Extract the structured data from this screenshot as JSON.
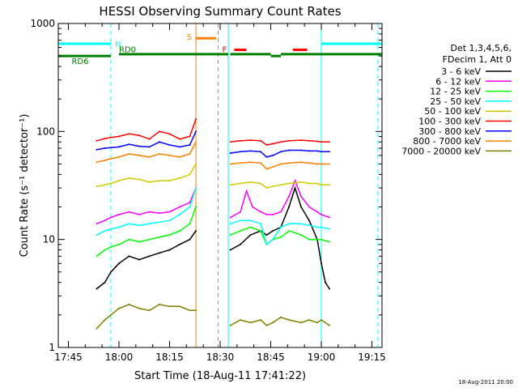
{
  "chart_data": {
    "type": "line",
    "title": "HESSI Observing Summary Count Rates",
    "xlabel": "Start Time (18-Aug-11 17:41:22)",
    "ylabel": "Count Rate (s⁻¹ detector⁻¹)",
    "yscale": "log",
    "xlim": [
      17.7,
      19.3
    ],
    "ylim": [
      1,
      1000
    ],
    "x_unit": "hours (UT)",
    "xticks": [
      {
        "v": 17.75,
        "label": "17:45"
      },
      {
        "v": 18.0,
        "label": "18:00"
      },
      {
        "v": 18.25,
        "label": "18:15"
      },
      {
        "v": 18.5,
        "label": "18:30"
      },
      {
        "v": 18.75,
        "label": "18:45"
      },
      {
        "v": 19.0,
        "label": "19:00"
      },
      {
        "v": 19.25,
        "label": "19:15"
      }
    ],
    "yticks": [
      {
        "v": 1,
        "label": "1"
      },
      {
        "v": 10,
        "label": "10"
      },
      {
        "v": 100,
        "label": "100"
      },
      {
        "v": 1000,
        "label": "1000"
      }
    ],
    "legend": {
      "placement": "right",
      "header": [
        "Det 1,3,4,5,6,",
        "FDecim 1, Att 0"
      ]
    },
    "footer_date": "18-Aug-2011 20:00",
    "series": [
      {
        "name": "3 - 6 keV",
        "color": "#000000",
        "segments": [
          [
            [
              17.89,
              3.5
            ],
            [
              17.93,
              4
            ],
            [
              17.96,
              5
            ],
            [
              18.0,
              6
            ],
            [
              18.05,
              7
            ],
            [
              18.1,
              6.5
            ],
            [
              18.15,
              7
            ],
            [
              18.2,
              7.5
            ],
            [
              18.25,
              8
            ],
            [
              18.3,
              9
            ],
            [
              18.35,
              10
            ],
            [
              18.38,
              12
            ]
          ],
          [
            [
              18.55,
              8
            ],
            [
              18.6,
              9
            ],
            [
              18.65,
              11
            ],
            [
              18.7,
              12
            ],
            [
              18.73,
              11
            ],
            [
              18.76,
              12
            ],
            [
              18.8,
              13
            ],
            [
              18.84,
              20
            ],
            [
              18.87,
              30
            ],
            [
              18.9,
              20
            ],
            [
              18.94,
              15
            ],
            [
              18.98,
              10
            ],
            [
              19.0,
              6
            ],
            [
              19.02,
              4
            ],
            [
              19.04,
              3.5
            ]
          ]
        ]
      },
      {
        "name": "6 - 12 keV",
        "color": "#ff00ff",
        "segments": [
          [
            [
              17.89,
              14
            ],
            [
              17.93,
              15
            ],
            [
              17.96,
              16
            ],
            [
              18.0,
              17
            ],
            [
              18.05,
              18
            ],
            [
              18.1,
              17
            ],
            [
              18.15,
              18
            ],
            [
              18.2,
              17.5
            ],
            [
              18.25,
              18
            ],
            [
              18.3,
              20
            ],
            [
              18.35,
              22
            ],
            [
              18.38,
              30
            ]
          ],
          [
            [
              18.55,
              16
            ],
            [
              18.6,
              18
            ],
            [
              18.63,
              28
            ],
            [
              18.66,
              20
            ],
            [
              18.7,
              18
            ],
            [
              18.73,
              17
            ],
            [
              18.76,
              17
            ],
            [
              18.8,
              18
            ],
            [
              18.84,
              25
            ],
            [
              18.87,
              35
            ],
            [
              18.9,
              25
            ],
            [
              18.94,
              20
            ],
            [
              18.98,
              18
            ],
            [
              19.0,
              17
            ],
            [
              19.04,
              16
            ]
          ]
        ]
      },
      {
        "name": "12 - 25 keV",
        "color": "#00ff00",
        "segments": [
          [
            [
              17.89,
              7
            ],
            [
              17.93,
              8
            ],
            [
              17.96,
              8.5
            ],
            [
              18.0,
              9
            ],
            [
              18.05,
              10
            ],
            [
              18.1,
              9.5
            ],
            [
              18.15,
              10
            ],
            [
              18.2,
              10.5
            ],
            [
              18.25,
              11
            ],
            [
              18.3,
              12
            ],
            [
              18.35,
              14
            ],
            [
              18.38,
              20
            ]
          ],
          [
            [
              18.55,
              11
            ],
            [
              18.6,
              12
            ],
            [
              18.65,
              13
            ],
            [
              18.7,
              12
            ],
            [
              18.73,
              9
            ],
            [
              18.76,
              10
            ],
            [
              18.8,
              10.5
            ],
            [
              18.84,
              12
            ],
            [
              18.9,
              11
            ],
            [
              18.94,
              10
            ],
            [
              18.98,
              10
            ],
            [
              19.0,
              10
            ],
            [
              19.04,
              9.5
            ]
          ]
        ]
      },
      {
        "name": "25 - 50 keV",
        "color": "#00ffff",
        "segments": [
          [
            [
              17.89,
              11
            ],
            [
              17.93,
              12
            ],
            [
              17.96,
              12.5
            ],
            [
              18.0,
              13
            ],
            [
              18.05,
              14
            ],
            [
              18.1,
              13.5
            ],
            [
              18.15,
              14
            ],
            [
              18.2,
              14.5
            ],
            [
              18.25,
              15
            ],
            [
              18.3,
              17
            ],
            [
              18.35,
              20
            ],
            [
              18.38,
              30
            ]
          ],
          [
            [
              18.55,
              14
            ],
            [
              18.6,
              15
            ],
            [
              18.65,
              15
            ],
            [
              18.7,
              14
            ],
            [
              18.73,
              9
            ],
            [
              18.76,
              10
            ],
            [
              18.8,
              13
            ],
            [
              18.84,
              14
            ],
            [
              18.9,
              14
            ],
            [
              18.94,
              13.5
            ],
            [
              18.98,
              13
            ],
            [
              19.0,
              13
            ],
            [
              19.04,
              12.5
            ]
          ]
        ]
      },
      {
        "name": "50 - 100 keV",
        "color": "#cccc00",
        "segments": [
          [
            [
              17.89,
              31
            ],
            [
              17.93,
              32
            ],
            [
              17.96,
              33
            ],
            [
              18.0,
              35
            ],
            [
              18.05,
              37
            ],
            [
              18.1,
              36
            ],
            [
              18.15,
              34
            ],
            [
              18.2,
              35
            ],
            [
              18.25,
              35
            ],
            [
              18.3,
              37
            ],
            [
              18.35,
              40
            ],
            [
              18.38,
              50
            ]
          ],
          [
            [
              18.55,
              32
            ],
            [
              18.6,
              33
            ],
            [
              18.65,
              34
            ],
            [
              18.7,
              33
            ],
            [
              18.73,
              30
            ],
            [
              18.76,
              31
            ],
            [
              18.8,
              32
            ],
            [
              18.84,
              33
            ],
            [
              18.9,
              34
            ],
            [
              18.94,
              33
            ],
            [
              18.98,
              33
            ],
            [
              19.0,
              32
            ],
            [
              19.04,
              32
            ]
          ]
        ]
      },
      {
        "name": "100 - 300 keV",
        "color": "#ff0000",
        "segments": [
          [
            [
              17.89,
              82
            ],
            [
              17.93,
              86
            ],
            [
              17.96,
              88
            ],
            [
              18.0,
              90
            ],
            [
              18.05,
              95
            ],
            [
              18.1,
              92
            ],
            [
              18.15,
              85
            ],
            [
              18.2,
              100
            ],
            [
              18.25,
              95
            ],
            [
              18.3,
              85
            ],
            [
              18.35,
              90
            ],
            [
              18.38,
              130
            ]
          ],
          [
            [
              18.55,
              80
            ],
            [
              18.6,
              82
            ],
            [
              18.65,
              83
            ],
            [
              18.7,
              82
            ],
            [
              18.73,
              75
            ],
            [
              18.76,
              77
            ],
            [
              18.8,
              80
            ],
            [
              18.84,
              82
            ],
            [
              18.9,
              83
            ],
            [
              18.94,
              82
            ],
            [
              18.98,
              81
            ],
            [
              19.0,
              80
            ],
            [
              19.04,
              80
            ]
          ]
        ]
      },
      {
        "name": "300 - 800 keV",
        "color": "#0000ff",
        "segments": [
          [
            [
              17.89,
              68
            ],
            [
              17.93,
              70
            ],
            [
              17.96,
              71
            ],
            [
              18.0,
              72
            ],
            [
              18.05,
              76
            ],
            [
              18.1,
              73
            ],
            [
              18.15,
              72
            ],
            [
              18.2,
              80
            ],
            [
              18.25,
              75
            ],
            [
              18.3,
              72
            ],
            [
              18.35,
              75
            ],
            [
              18.38,
              100
            ]
          ],
          [
            [
              18.55,
              63
            ],
            [
              18.6,
              65
            ],
            [
              18.65,
              66
            ],
            [
              18.7,
              65
            ],
            [
              18.73,
              58
            ],
            [
              18.76,
              60
            ],
            [
              18.8,
              65
            ],
            [
              18.84,
              67
            ],
            [
              18.9,
              67
            ],
            [
              18.94,
              66
            ],
            [
              18.98,
              66
            ],
            [
              19.0,
              65
            ],
            [
              19.04,
              65
            ]
          ]
        ]
      },
      {
        "name": "800 - 7000 keV",
        "color": "#ff8000",
        "segments": [
          [
            [
              17.89,
              52
            ],
            [
              17.93,
              54
            ],
            [
              17.96,
              56
            ],
            [
              18.0,
              58
            ],
            [
              18.05,
              62
            ],
            [
              18.1,
              60
            ],
            [
              18.15,
              58
            ],
            [
              18.2,
              62
            ],
            [
              18.25,
              60
            ],
            [
              18.3,
              58
            ],
            [
              18.35,
              62
            ],
            [
              18.38,
              80
            ]
          ],
          [
            [
              18.55,
              50
            ],
            [
              18.6,
              51
            ],
            [
              18.65,
              52
            ],
            [
              18.7,
              51
            ],
            [
              18.73,
              45
            ],
            [
              18.76,
              47
            ],
            [
              18.8,
              50
            ],
            [
              18.84,
              51
            ],
            [
              18.9,
              52
            ],
            [
              18.94,
              51
            ],
            [
              18.98,
              50
            ],
            [
              19.0,
              50
            ],
            [
              19.04,
              50
            ]
          ]
        ]
      },
      {
        "name": "7000 - 20000 keV",
        "color": "#808000",
        "segments": [
          [
            [
              17.89,
              1.5
            ],
            [
              17.93,
              1.8
            ],
            [
              17.96,
              2
            ],
            [
              18.0,
              2.3
            ],
            [
              18.05,
              2.5
            ],
            [
              18.1,
              2.3
            ],
            [
              18.15,
              2.2
            ],
            [
              18.2,
              2.5
            ],
            [
              18.25,
              2.4
            ],
            [
              18.3,
              2.4
            ],
            [
              18.35,
              2.2
            ],
            [
              18.38,
              2.2
            ]
          ],
          [
            [
              18.55,
              1.6
            ],
            [
              18.6,
              1.8
            ],
            [
              18.65,
              1.7
            ],
            [
              18.7,
              1.8
            ],
            [
              18.73,
              1.6
            ],
            [
              18.76,
              1.7
            ],
            [
              18.8,
              1.9
            ],
            [
              18.84,
              1.8
            ],
            [
              18.9,
              1.7
            ],
            [
              18.94,
              1.8
            ],
            [
              18.98,
              1.7
            ],
            [
              19.0,
              1.8
            ],
            [
              19.04,
              1.6
            ]
          ]
        ]
      }
    ],
    "state_bars": [
      {
        "label": "N",
        "color": "#00ffff",
        "y": 650,
        "segments": [
          [
            17.7,
            17.96
          ],
          [
            19.0,
            19.3
          ]
        ]
      },
      {
        "label": "RD0",
        "color": "#008000",
        "y": 520,
        "segments": [
          [
            18.0,
            18.54
          ],
          [
            18.55,
            18.75
          ],
          [
            18.8,
            19.3
          ]
        ]
      },
      {
        "label": "RD6",
        "color": "#008000",
        "y": 500,
        "segments": [
          [
            17.7,
            17.96
          ],
          [
            18.75,
            18.8
          ]
        ]
      },
      {
        "label": "S",
        "color": "#ff8000",
        "y": 730,
        "segments": [
          [
            18.38,
            18.48
          ]
        ]
      },
      {
        "label": "F",
        "color": "#ff0000",
        "y": 570,
        "segments": [
          [
            18.57,
            18.63
          ],
          [
            18.86,
            18.93
          ]
        ]
      }
    ],
    "vlines": [
      {
        "x": 17.7,
        "color": "#00ffff",
        "style": "solid"
      },
      {
        "x": 17.96,
        "color": "#00ffff",
        "style": "dashed"
      },
      {
        "x": 18.38,
        "color": "#ff8000",
        "style": "solid"
      },
      {
        "x": 18.49,
        "color": "#ff8000",
        "style": "dashed"
      },
      {
        "x": 18.54,
        "color": "#00ffff",
        "style": "solid"
      },
      {
        "x": 19.0,
        "color": "#00ffff",
        "style": "solid"
      },
      {
        "x": 19.28,
        "color": "#00ffff",
        "style": "dashed"
      }
    ]
  }
}
